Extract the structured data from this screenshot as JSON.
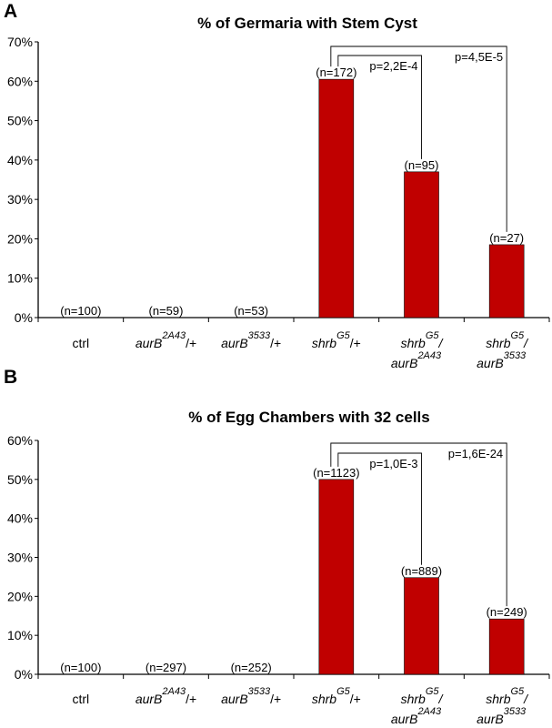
{
  "chart_data": [
    {
      "panel": "A",
      "type": "bar",
      "title": "% of Germaria with Stem Cyst",
      "ylim": [
        0,
        70
      ],
      "yticks": [
        "0%",
        "10%",
        "20%",
        "30%",
        "40%",
        "50%",
        "60%",
        "70%"
      ],
      "categories": [
        {
          "parts": [
            {
              "t": "ctrl"
            }
          ]
        },
        {
          "parts": [
            {
              "t": "aurB",
              "i": true
            },
            {
              "t": "2A43",
              "i": true,
              "sup": true
            },
            {
              "t": "/+"
            }
          ]
        },
        {
          "parts": [
            {
              "t": "aurB",
              "i": true
            },
            {
              "t": "3533",
              "i": true,
              "sup": true
            },
            {
              "t": "/+"
            }
          ]
        },
        {
          "parts": [
            {
              "t": "shrb",
              "i": true
            },
            {
              "t": "G5",
              "i": true,
              "sup": true
            },
            {
              "t": "/+"
            }
          ]
        },
        {
          "parts": [
            {
              "t": "shrb",
              "i": true
            },
            {
              "t": "G5",
              "i": true,
              "sup": true
            },
            {
              "t": "/",
              "i": true
            },
            {
              "t": "aurB",
              "i": true,
              "br": true
            },
            {
              "t": "2A43",
              "i": true,
              "sup": true
            }
          ]
        },
        {
          "parts": [
            {
              "t": "shrb",
              "i": true
            },
            {
              "t": "G5",
              "i": true,
              "sup": true
            },
            {
              "t": "/",
              "i": true
            },
            {
              "t": "aurB",
              "i": true,
              "br": true
            },
            {
              "t": "3533",
              "i": true,
              "sup": true
            }
          ]
        }
      ],
      "values": [
        0,
        0,
        0,
        60.5,
        37,
        18.5
      ],
      "n_labels": [
        "(n=100)",
        "(n=59)",
        "(n=53)",
        "(n=172)",
        "(n=95)",
        "(n=27)"
      ],
      "comparisons": [
        {
          "from": 3,
          "to": 4,
          "label": "p=2,2E-4"
        },
        {
          "from": 3,
          "to": 5,
          "label": "p=4,5E-5"
        }
      ],
      "bar_color": "#c00000"
    },
    {
      "panel": "B",
      "type": "bar",
      "title": "% of Egg Chambers with 32 cells",
      "ylim": [
        0,
        60
      ],
      "yticks": [
        "0%",
        "10%",
        "20%",
        "30%",
        "40%",
        "50%",
        "60%"
      ],
      "categories": [
        {
          "parts": [
            {
              "t": "ctrl"
            }
          ]
        },
        {
          "parts": [
            {
              "t": "aurB",
              "i": true
            },
            {
              "t": "2A43",
              "i": true,
              "sup": true
            },
            {
              "t": "/+"
            }
          ]
        },
        {
          "parts": [
            {
              "t": "aurB",
              "i": true
            },
            {
              "t": "3533",
              "i": true,
              "sup": true
            },
            {
              "t": "/+"
            }
          ]
        },
        {
          "parts": [
            {
              "t": "shrb",
              "i": true
            },
            {
              "t": "G5",
              "i": true,
              "sup": true
            },
            {
              "t": "/+"
            }
          ]
        },
        {
          "parts": [
            {
              "t": "shrb",
              "i": true
            },
            {
              "t": "G5",
              "i": true,
              "sup": true
            },
            {
              "t": "/",
              "i": true
            },
            {
              "t": "aurB",
              "i": true,
              "br": true
            },
            {
              "t": "2A43",
              "i": true,
              "sup": true
            }
          ]
        },
        {
          "parts": [
            {
              "t": "shrb",
              "i": true
            },
            {
              "t": "G5",
              "i": true,
              "sup": true
            },
            {
              "t": "/",
              "i": true
            },
            {
              "t": "aurB",
              "i": true,
              "br": true
            },
            {
              "t": "3533",
              "i": true,
              "sup": true
            }
          ]
        }
      ],
      "values": [
        0,
        0,
        0,
        50,
        24.8,
        14.2
      ],
      "n_labels": [
        "(n=100)",
        "(n=297)",
        "(n=252)",
        "(n=1123)",
        "(n=889)",
        "(n=249)"
      ],
      "comparisons": [
        {
          "from": 3,
          "to": 4,
          "label": "p=1,0E-3"
        },
        {
          "from": 3,
          "to": 5,
          "label": "p=1,6E-24"
        }
      ],
      "bar_color": "#c00000"
    }
  ]
}
